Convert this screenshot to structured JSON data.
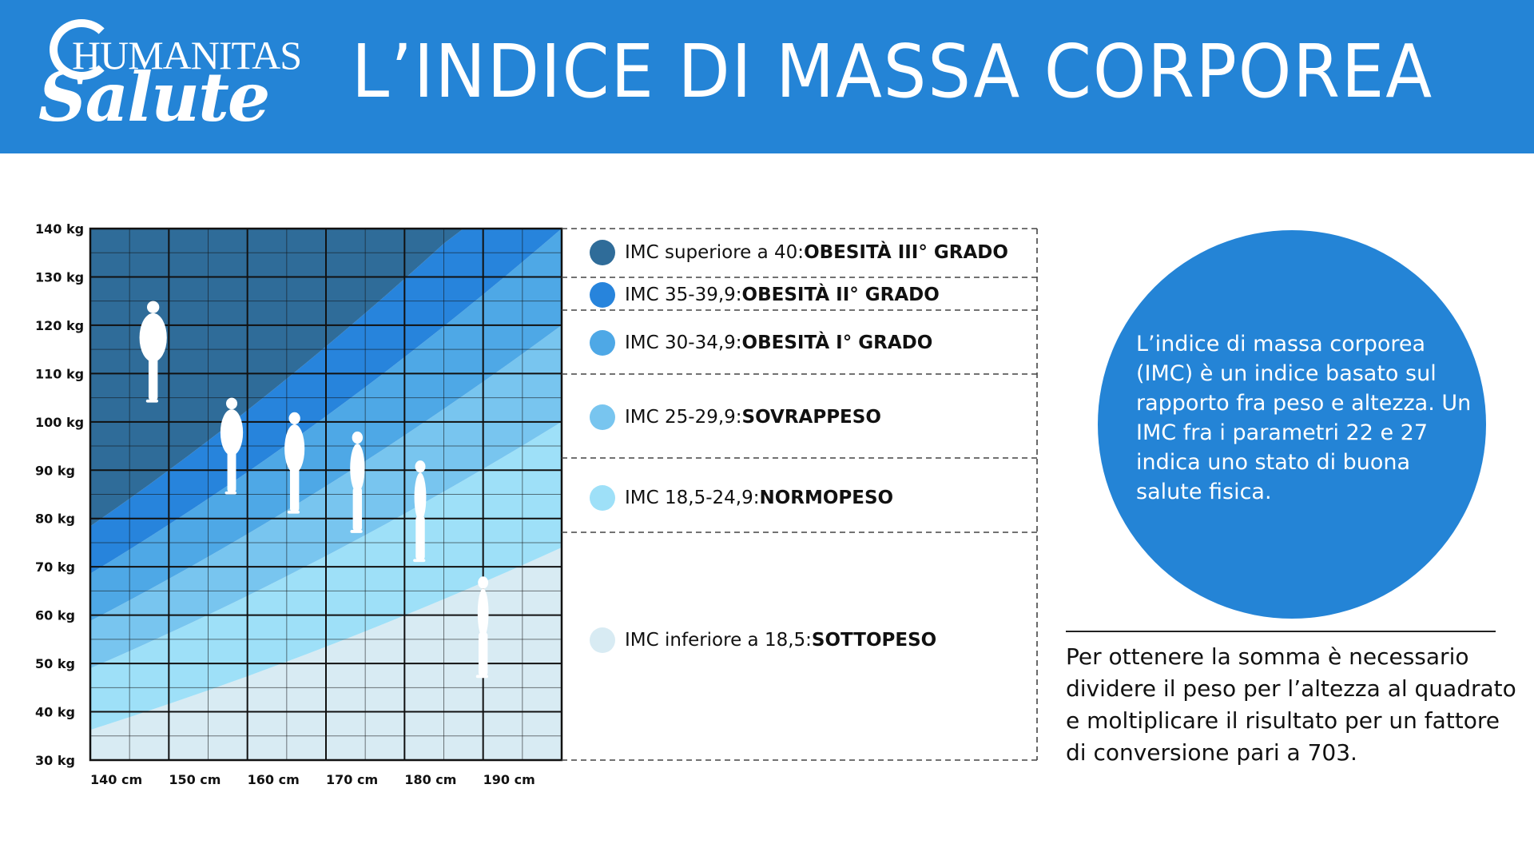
{
  "header": {
    "logo_line1": "HUMANITAS",
    "logo_line2": "Salute",
    "title": "L’INDICE DI MASSA CORPOREA",
    "background_color": "#2484d6"
  },
  "legend": [
    {
      "prefix": "IMC superiore a 40: ",
      "label": "OBESITÀ III° GRADO",
      "color": "#2f6c99"
    },
    {
      "prefix": "IMC 35-39,9: ",
      "label": "OBESITÀ II° GRADO",
      "color": "#2784dc"
    },
    {
      "prefix": "IMC 30-34,9: ",
      "label": "OBESITÀ I° GRADO",
      "color": "#4ea8e6"
    },
    {
      "prefix": "IMC 25-29,9: ",
      "label": "SOVRAPPESO",
      "color": "#78c5ef"
    },
    {
      "prefix": "IMC 18,5-24,9: ",
      "label": "NORMOPESO",
      "color": "#9ee0f8"
    },
    {
      "prefix": "IMC inferiore a 18,5: ",
      "label": "SOTTOPESO",
      "color": "#d8ebf3"
    }
  ],
  "info": {
    "circle_text": "L’indice di massa corporea (IMC) è un indice basato sul rapporto fra peso e altezza. Un IMC fra i parametri 22 e 27 indica uno stato di buona salute fisica.",
    "note": "Per ottenere la somma è necessario dividere il peso per l’altezza al quadrato e moltiplicare il risultato per un fattore di conversione pari a 703."
  },
  "chart_data": {
    "type": "area",
    "title": "",
    "xlabel": "",
    "ylabel": "",
    "x_ticks": [
      "140 cm",
      "150 cm",
      "160 cm",
      "170 cm",
      "180 cm",
      "190 cm"
    ],
    "y_ticks": [
      "140 kg",
      "130 kg",
      "120 kg",
      "110 kg",
      "100 kg",
      "90 kg",
      "80 kg",
      "70 kg",
      "60 kg",
      "50 kg",
      "40 kg",
      "30 kg"
    ],
    "xlim": [
      140,
      200
    ],
    "ylim": [
      30,
      140
    ],
    "grid": true,
    "series": [
      {
        "name": "OBESITÀ III° GRADO",
        "bmi_min": 40,
        "color": "#2f6c99"
      },
      {
        "name": "OBESITÀ II° GRADO",
        "bmi_min": 35,
        "color": "#2784dc"
      },
      {
        "name": "OBESITÀ I° GRADO",
        "bmi_min": 30,
        "color": "#4ea8e6"
      },
      {
        "name": "SOVRAPPESO",
        "bmi_min": 25,
        "color": "#78c5ef"
      },
      {
        "name": "NORMOPESO",
        "bmi_min": 18.5,
        "color": "#9ee0f8"
      },
      {
        "name": "SOTTOPESO",
        "bmi_min": 0,
        "color": "#d8ebf3"
      }
    ],
    "figures": [
      {
        "x": 148,
        "y_top": 125,
        "y_bottom": 104
      },
      {
        "x": 158,
        "y_top": 105,
        "y_bottom": 85
      },
      {
        "x": 166,
        "y_top": 102,
        "y_bottom": 81
      },
      {
        "x": 174,
        "y_top": 98,
        "y_bottom": 77
      },
      {
        "x": 182,
        "y_top": 92,
        "y_bottom": 71
      },
      {
        "x": 190,
        "y_top": 68,
        "y_bottom": 47
      }
    ]
  }
}
